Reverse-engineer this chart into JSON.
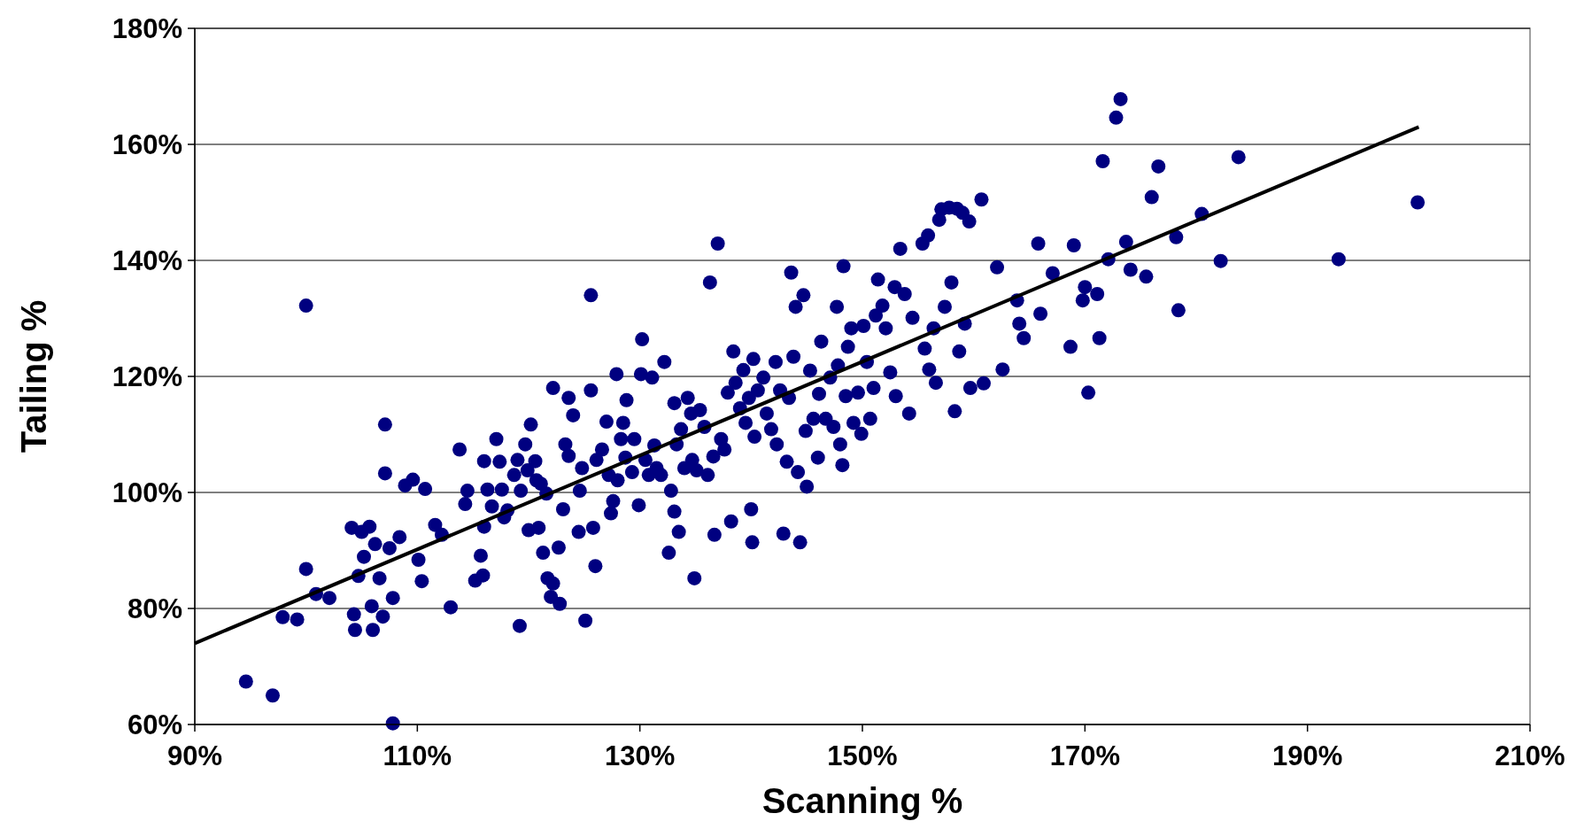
{
  "chart_data": {
    "type": "scatter",
    "xlabel": "Scanning %",
    "ylabel": "Tailing %",
    "xlim": [
      90,
      210
    ],
    "ylim": [
      60,
      180
    ],
    "grid": "y",
    "xticks": [
      {
        "value": 90,
        "label": "90%"
      },
      {
        "value": 110,
        "label": "110%"
      },
      {
        "value": 130,
        "label": "130%"
      },
      {
        "value": 150,
        "label": "150%"
      },
      {
        "value": 170,
        "label": "170%"
      },
      {
        "value": 190,
        "label": "190%"
      },
      {
        "value": 210,
        "label": "210%"
      }
    ],
    "yticks": [
      {
        "value": 60,
        "label": "60%"
      },
      {
        "value": 80,
        "label": "80%"
      },
      {
        "value": 100,
        "label": "100%"
      },
      {
        "value": 120,
        "label": "120%"
      },
      {
        "value": 140,
        "label": "140%"
      },
      {
        "value": 160,
        "label": "160%"
      },
      {
        "value": 180,
        "label": "180%"
      }
    ],
    "series": [
      {
        "color": "#000080",
        "marker": "circle",
        "x": [
          94.6,
          97.0,
          97.9,
          99.2,
          100.0,
          100.0,
          100.9,
          102.1,
          104.1,
          104.3,
          104.4,
          104.7,
          105.2,
          105.0,
          105.7,
          105.9,
          106.0,
          106.2,
          106.6,
          106.9,
          107.1,
          107.1,
          107.5,
          107.8,
          107.8,
          108.4,
          108.9,
          109.6,
          110.1,
          110.4,
          110.7,
          111.6,
          112.2,
          113.0,
          113.8,
          114.3,
          114.5,
          115.2,
          115.7,
          115.9,
          116.0,
          116.0,
          116.3,
          116.7,
          117.1,
          117.4,
          117.6,
          117.8,
          118.1,
          118.7,
          119.0,
          119.2,
          119.3,
          119.7,
          119.9,
          120.2,
          120.0,
          120.6,
          120.7,
          120.9,
          121.1,
          121.3,
          121.6,
          121.7,
          122.0,
          122.2,
          122.2,
          122.7,
          122.8,
          123.1,
          123.3,
          123.6,
          123.6,
          124.0,
          124.5,
          124.6,
          124.8,
          125.1,
          125.6,
          125.6,
          125.8,
          126.0,
          126.1,
          126.6,
          127.0,
          127.2,
          127.4,
          127.6,
          127.9,
          128.0,
          128.3,
          128.5,
          128.7,
          128.8,
          129.3,
          129.5,
          129.9,
          130.1,
          130.2,
          130.5,
          130.8,
          131.1,
          131.3,
          131.5,
          131.9,
          132.2,
          132.6,
          132.8,
          133.1,
          133.1,
          133.3,
          133.5,
          133.7,
          134.0,
          134.3,
          134.6,
          134.7,
          134.9,
          135.1,
          135.4,
          135.8,
          136.1,
          136.3,
          136.6,
          136.7,
          137.0,
          137.3,
          137.6,
          137.9,
          138.2,
          138.4,
          138.6,
          139.0,
          139.3,
          139.5,
          139.8,
          140.0,
          140.1,
          140.2,
          140.3,
          140.6,
          141.1,
          141.4,
          141.8,
          142.2,
          142.3,
          142.6,
          142.9,
          143.2,
          143.4,
          143.6,
          143.8,
          144.0,
          144.2,
          144.4,
          144.7,
          144.9,
          145.0,
          145.3,
          145.6,
          146.0,
          146.1,
          146.3,
          146.7,
          147.1,
          147.4,
          147.7,
          147.8,
          148.0,
          148.2,
          148.3,
          148.5,
          148.7,
          149.0,
          149.2,
          149.6,
          149.9,
          150.1,
          150.4,
          150.7,
          151.0,
          151.2,
          151.4,
          151.8,
          152.1,
          152.5,
          152.9,
          153.0,
          153.4,
          153.8,
          154.2,
          154.5,
          155.4,
          155.6,
          155.9,
          156.0,
          156.4,
          156.6,
          156.9,
          157.1,
          157.4,
          157.8,
          158.0,
          158.3,
          158.5,
          158.7,
          159.0,
          159.2,
          159.6,
          159.7,
          160.7,
          160.9,
          162.1,
          162.6,
          163.9,
          164.1,
          164.5,
          165.8,
          166.0,
          167.1,
          168.7,
          169.0,
          169.8,
          170.0,
          170.3,
          171.1,
          171.3,
          171.6,
          172.1,
          172.8,
          173.2,
          173.7,
          174.1,
          175.5,
          176.0,
          176.6,
          178.2,
          178.4,
          180.5,
          182.2,
          183.8,
          192.8,
          199.9
        ],
        "values": [
          67.4,
          65.0,
          78.5,
          78.1,
          86.8,
          132.2,
          82.5,
          81.8,
          93.9,
          79.0,
          76.3,
          85.6,
          88.9,
          93.2,
          94.1,
          80.4,
          76.3,
          91.1,
          85.2,
          78.6,
          103.3,
          111.7,
          90.4,
          81.8,
          60.2,
          92.3,
          101.2,
          102.2,
          88.4,
          84.7,
          100.6,
          94.4,
          92.7,
          80.2,
          107.4,
          98.0,
          100.3,
          84.8,
          89.1,
          85.7,
          94.1,
          105.4,
          100.5,
          97.6,
          109.2,
          105.3,
          100.5,
          95.7,
          96.9,
          103.0,
          105.6,
          77.0,
          100.3,
          108.3,
          103.8,
          111.7,
          93.5,
          105.4,
          102.1,
          93.9,
          101.5,
          89.6,
          99.8,
          85.2,
          82.0,
          84.3,
          118.0,
          90.5,
          80.8,
          97.1,
          108.3,
          106.3,
          116.3,
          113.3,
          93.2,
          100.3,
          104.2,
          77.9,
          117.6,
          134.0,
          93.9,
          87.3,
          105.6,
          107.4,
          112.2,
          103.0,
          96.4,
          98.5,
          120.4,
          102.1,
          109.2,
          112.0,
          106.0,
          115.9,
          103.5,
          109.2,
          97.8,
          120.4,
          126.4,
          105.6,
          103.0,
          119.8,
          108.1,
          104.2,
          103.0,
          122.5,
          89.6,
          100.3,
          96.7,
          115.4,
          108.3,
          93.2,
          110.9,
          104.2,
          116.3,
          113.6,
          105.6,
          85.2,
          103.8,
          114.2,
          111.3,
          103.0,
          136.2,
          106.2,
          92.7,
          142.9,
          109.2,
          107.4,
          117.2,
          95.0,
          124.3,
          118.9,
          114.5,
          121.1,
          112.0,
          116.3,
          97.1,
          91.4,
          123.0,
          109.6,
          117.6,
          119.8,
          113.6,
          110.9,
          122.5,
          108.3,
          117.6,
          92.9,
          105.3,
          116.3,
          137.9,
          123.4,
          132.0,
          103.5,
          91.4,
          134.0,
          110.6,
          101.0,
          121.0,
          112.7,
          106.0,
          117.0,
          126.0,
          112.7,
          119.8,
          111.3,
          132.0,
          121.9,
          108.3,
          104.7,
          139.0,
          116.6,
          125.1,
          128.3,
          112.0,
          117.2,
          110.1,
          128.7,
          122.5,
          112.7,
          118.0,
          130.5,
          136.7,
          132.2,
          128.3,
          120.7,
          135.4,
          116.6,
          142.0,
          134.2,
          113.6,
          130.1,
          142.9,
          124.8,
          144.3,
          121.2,
          128.3,
          118.9,
          147.0,
          148.8,
          132.0,
          149.1,
          136.2,
          114.0,
          148.9,
          124.3,
          148.2,
          129.1,
          146.7,
          118.0,
          150.5,
          118.8,
          138.8,
          121.2,
          133.1,
          129.1,
          126.6,
          142.9,
          130.8,
          137.8,
          125.1,
          142.6,
          133.1,
          135.4,
          117.2,
          134.2,
          126.6,
          157.1,
          140.2,
          164.6,
          167.8,
          143.2,
          138.4,
          137.2,
          150.9,
          156.2,
          144.0,
          131.4,
          148.0,
          139.9,
          157.8,
          140.2,
          150.0
        ]
      },
      {
        "type": "line",
        "color": "#000000",
        "marker": "none",
        "x": [
          90,
          200
        ],
        "values": [
          74,
          163
        ]
      }
    ]
  }
}
